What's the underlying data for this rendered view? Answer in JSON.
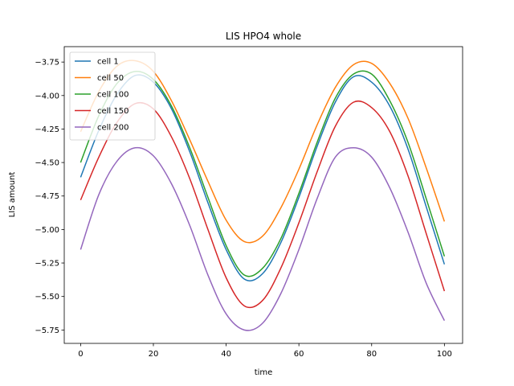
{
  "chart_data": {
    "type": "line",
    "title": "LIS HPO4 whole",
    "xlabel": "time",
    "ylabel": "LIS amount",
    "xlim": [
      -4.5,
      105
    ],
    "ylim": [
      -5.85,
      -3.635
    ],
    "xticks": [
      0,
      20,
      40,
      60,
      80,
      100
    ],
    "xtick_labels": [
      "0",
      "20",
      "40",
      "60",
      "80",
      "100"
    ],
    "yticks": [
      -5.75,
      -5.5,
      -5.25,
      -5.0,
      -4.75,
      -4.5,
      -4.25,
      -4.0,
      -3.75
    ],
    "ytick_labels": [
      "−5.75",
      "−5.50",
      "−5.25",
      "−5.00",
      "−4.75",
      "−4.50",
      "−4.25",
      "−4.00",
      "−3.75"
    ],
    "grid": false,
    "legend_position": "top-left",
    "x": [
      0,
      5,
      10,
      15,
      20,
      25,
      30,
      35,
      40,
      45,
      50,
      55,
      60,
      65,
      70,
      75,
      80,
      85,
      90,
      95,
      100
    ],
    "series": [
      {
        "name": "cell 1",
        "color": "#1f77b4",
        "values": [
          -4.61,
          -4.26,
          -3.99,
          -3.85,
          -3.9,
          -4.1,
          -4.42,
          -4.8,
          -5.15,
          -5.37,
          -5.33,
          -5.1,
          -4.76,
          -4.38,
          -4.05,
          -3.86,
          -3.9,
          -4.08,
          -4.4,
          -4.83,
          -5.26
        ]
      },
      {
        "name": "cell 50",
        "color": "#ff7f0e",
        "values": [
          -4.27,
          -3.97,
          -3.78,
          -3.74,
          -3.82,
          -4.04,
          -4.33,
          -4.64,
          -4.93,
          -5.09,
          -5.05,
          -4.84,
          -4.55,
          -4.22,
          -3.94,
          -3.77,
          -3.76,
          -3.91,
          -4.17,
          -4.54,
          -4.94
        ]
      },
      {
        "name": "cell 100",
        "color": "#2ca02c",
        "values": [
          -4.5,
          -4.15,
          -3.91,
          -3.82,
          -3.88,
          -4.08,
          -4.39,
          -4.76,
          -5.12,
          -5.34,
          -5.29,
          -5.07,
          -4.73,
          -4.35,
          -4.02,
          -3.84,
          -3.84,
          -4.04,
          -4.35,
          -4.77,
          -5.2
        ]
      },
      {
        "name": "cell 150",
        "color": "#d62728",
        "values": [
          -4.78,
          -4.46,
          -4.2,
          -4.06,
          -4.1,
          -4.31,
          -4.62,
          -5.0,
          -5.36,
          -5.57,
          -5.53,
          -5.29,
          -4.95,
          -4.57,
          -4.23,
          -4.05,
          -4.09,
          -4.27,
          -4.6,
          -5.03,
          -5.46
        ]
      },
      {
        "name": "cell 200",
        "color": "#9467bd",
        "values": [
          -5.15,
          -4.74,
          -4.49,
          -4.39,
          -4.45,
          -4.66,
          -4.97,
          -5.34,
          -5.63,
          -5.75,
          -5.7,
          -5.48,
          -5.15,
          -4.77,
          -4.46,
          -4.39,
          -4.46,
          -4.69,
          -5.02,
          -5.4,
          -5.68
        ]
      }
    ]
  }
}
